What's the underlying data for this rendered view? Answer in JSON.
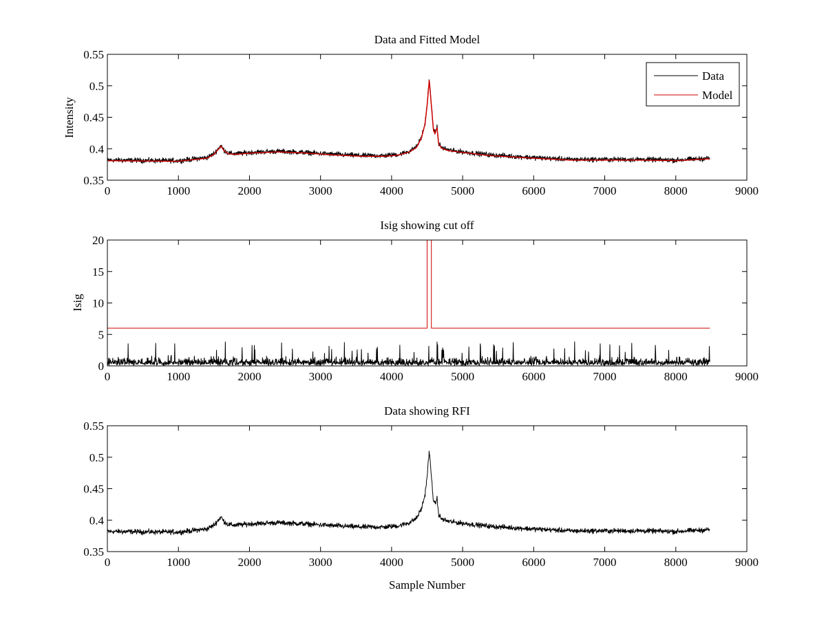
{
  "chart_data": [
    {
      "type": "line",
      "title": "Data and Fitted Model",
      "xlabel": "",
      "ylabel": "Intensity",
      "xlim": [
        0,
        9000
      ],
      "ylim": [
        0.35,
        0.55
      ],
      "xticks": [
        0,
        1000,
        2000,
        3000,
        4000,
        5000,
        6000,
        7000,
        8000,
        9000
      ],
      "yticks": [
        0.35,
        0.4,
        0.45,
        0.5,
        0.55
      ],
      "legend": {
        "location": "top-right",
        "entries": [
          "Data",
          "Model"
        ]
      },
      "series": [
        {
          "name": "Data",
          "color": "#000000",
          "x_range": [
            0,
            8480
          ],
          "noise_amplitude": 0.006
        },
        {
          "name": "Model",
          "color": "#cc0000",
          "x_range": [
            0,
            8480
          ]
        }
      ],
      "baseline": {
        "x": [
          0,
          1000,
          1400,
          1500,
          1560,
          1600,
          1640,
          1700,
          1800,
          2000,
          2400,
          2800,
          3200,
          3600,
          3900,
          4100,
          4250,
          4350,
          4420,
          4470,
          4500,
          4530,
          4560,
          4590,
          4610,
          4640,
          4660,
          4700,
          4800,
          5000,
          5400,
          6000,
          6500,
          7000,
          7500,
          8000,
          8480
        ],
        "y": [
          0.382,
          0.381,
          0.386,
          0.392,
          0.4,
          0.405,
          0.398,
          0.393,
          0.392,
          0.394,
          0.396,
          0.394,
          0.391,
          0.389,
          0.389,
          0.391,
          0.396,
          0.403,
          0.418,
          0.44,
          0.47,
          0.51,
          0.47,
          0.43,
          0.425,
          0.435,
          0.41,
          0.402,
          0.398,
          0.395,
          0.39,
          0.386,
          0.383,
          0.383,
          0.383,
          0.382,
          0.385
        ]
      }
    },
    {
      "type": "line",
      "title": "Isig showing cut off",
      "xlabel": "",
      "ylabel": "Isig",
      "xlim": [
        0,
        9000
      ],
      "ylim": [
        0,
        20
      ],
      "xticks": [
        0,
        1000,
        2000,
        3000,
        4000,
        5000,
        6000,
        7000,
        8000,
        9000
      ],
      "yticks": [
        0,
        5,
        10,
        15,
        20
      ],
      "series": [
        {
          "name": "Isig",
          "color": "#000000",
          "x_range": [
            0,
            8480
          ],
          "typical_max": 2.5,
          "peak_max": 4
        },
        {
          "name": "Cut off",
          "color": "#cc0000",
          "x": [
            0,
            4500,
            4500,
            4560,
            4560,
            8480
          ],
          "y": [
            6,
            6,
            20,
            20,
            6,
            6
          ]
        }
      ]
    },
    {
      "type": "line",
      "title": "Data showing RFI",
      "xlabel": "Sample Number",
      "ylabel": "",
      "xlim": [
        0,
        9000
      ],
      "ylim": [
        0.35,
        0.55
      ],
      "xticks": [
        0,
        1000,
        2000,
        3000,
        4000,
        5000,
        6000,
        7000,
        8000,
        9000
      ],
      "yticks": [
        0.35,
        0.4,
        0.45,
        0.5,
        0.55
      ],
      "series": [
        {
          "name": "Data",
          "color": "#000000",
          "x_range": [
            0,
            8480
          ],
          "noise_amplitude": 0.006
        }
      ]
    }
  ]
}
